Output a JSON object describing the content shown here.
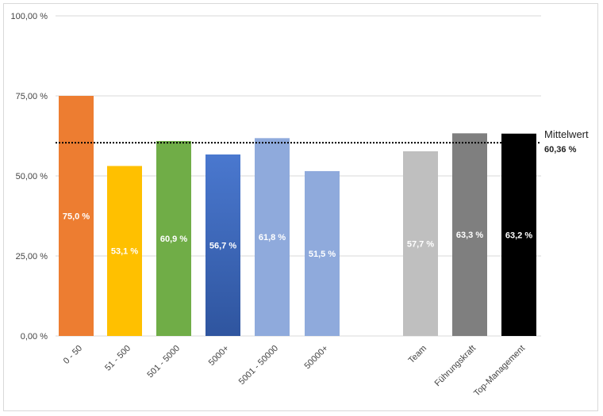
{
  "chart_data": {
    "type": "bar",
    "categories": [
      "0 - 50",
      "51 - 500",
      "501 - 5000",
      "5000+",
      "5001 - 50000",
      "50000+",
      "Team",
      "Führungskraft",
      "Top-Management"
    ],
    "values": [
      75.0,
      53.1,
      60.9,
      56.7,
      61.8,
      51.5,
      57.7,
      63.3,
      63.2
    ],
    "data_labels": [
      "75,0 %",
      "53,1 %",
      "60,9 %",
      "56,7 %",
      "61,8 %",
      "51,5 %",
      "57,7 %",
      "63,3 %",
      "63,2 %"
    ],
    "colors": [
      "#ED7D31",
      "#FFC000",
      "#70AD47",
      "#4472C4",
      "#8FAADC",
      "#8FAADC",
      "#BFBFBF",
      "#7F7F7F",
      "#000000"
    ],
    "ylim": [
      0,
      100
    ],
    "yticks": [
      0,
      25,
      50,
      75,
      100
    ],
    "ytick_labels": [
      "0,00 %",
      "25,00 %",
      "50,00 %",
      "75,00 %",
      "100,00 %"
    ],
    "grid": true,
    "reference_line": {
      "label": "Mittelwert",
      "value": 60.36,
      "value_label": "60,36 %",
      "style": "dotted"
    }
  }
}
